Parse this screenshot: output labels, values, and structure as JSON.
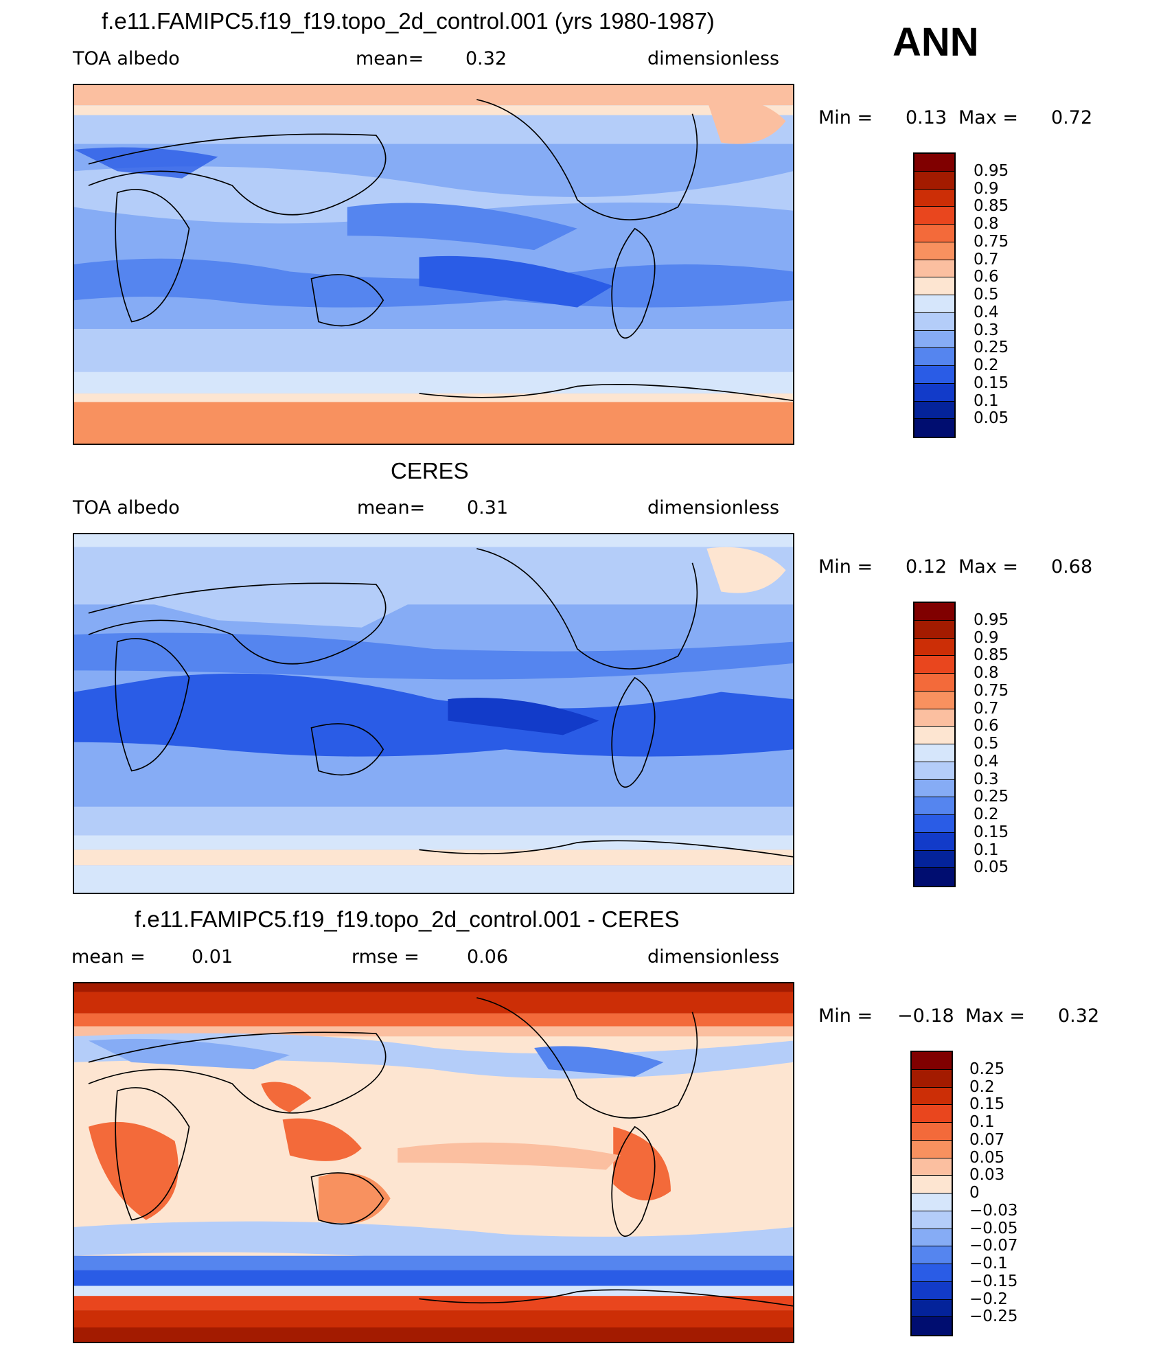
{
  "season": "ANN",
  "panels": [
    {
      "title": "f.e11.FAMIPC5.f19_f19.topo_2d_control.001 (yrs 1980-1987)",
      "left_label": "TOA albedo",
      "center_label": "mean=",
      "center_value": "0.32",
      "right_label": "dimensionless",
      "min_label": "Min =",
      "min_value": "0.13",
      "max_label": "Max =",
      "max_value": "0.72",
      "levels": [
        "0.95",
        "0.9",
        "0.85",
        "0.8",
        "0.75",
        "0.7",
        "0.6",
        "0.5",
        "0.4",
        "0.3",
        "0.25",
        "0.2",
        "0.15",
        "0.1",
        "0.05"
      ]
    },
    {
      "title": "CERES",
      "left_label": "TOA albedo",
      "center_label": "mean=",
      "center_value": "0.31",
      "right_label": "dimensionless",
      "min_label": "Min =",
      "min_value": "0.12",
      "max_label": "Max =",
      "max_value": "0.68",
      "levels": [
        "0.95",
        "0.9",
        "0.85",
        "0.8",
        "0.75",
        "0.7",
        "0.6",
        "0.5",
        "0.4",
        "0.3",
        "0.25",
        "0.2",
        "0.15",
        "0.1",
        "0.05"
      ]
    },
    {
      "title": "f.e11.FAMIPC5.f19_f19.topo_2d_control.001 - CERES",
      "left_label": "mean =",
      "left_value": "0.01",
      "center_label": "rmse =",
      "center_value": "0.06",
      "right_label": "dimensionless",
      "min_label": "Min =",
      "min_value": "−0.18",
      "max_label": "Max =",
      "max_value": "0.32",
      "levels": [
        "0.25",
        "0.2",
        "0.15",
        "0.1",
        "0.07",
        "0.05",
        "0.03",
        "0",
        "−0.03",
        "−0.05",
        "−0.07",
        "−0.1",
        "−0.15",
        "−0.2",
        "−0.25"
      ]
    }
  ],
  "colors": {
    "colorbar": [
      "#800000",
      "#a31b00",
      "#cc2e06",
      "#e9461e",
      "#f36a3a",
      "#f8915f",
      "#fbbfa0",
      "#fde5d1",
      "#d6e6fb",
      "#b4cdf9",
      "#86acf5",
      "#5585ef",
      "#2a5ce6",
      "#123bc9",
      "#04239a",
      "#000d70"
    ]
  },
  "chart_data": [
    {
      "type": "heatmap",
      "title": "f.e11.FAMIPC5.f19_f19.topo_2d_control.001 (yrs 1980-1987)",
      "variable": "TOA albedo",
      "units": "dimensionless",
      "mean": 0.32,
      "min": 0.13,
      "max": 0.72,
      "contour_levels": [
        0.05,
        0.1,
        0.15,
        0.2,
        0.25,
        0.3,
        0.4,
        0.5,
        0.6,
        0.7,
        0.75,
        0.8,
        0.85,
        0.9,
        0.95
      ],
      "xlim": [
        0,
        360
      ],
      "ylim": [
        -90,
        90
      ],
      "zonal_mean_profile": [
        {
          "lat": 80,
          "value": 0.65
        },
        {
          "lat": 60,
          "value": 0.45
        },
        {
          "lat": 40,
          "value": 0.33
        },
        {
          "lat": 20,
          "value": 0.22
        },
        {
          "lat": 0,
          "value": 0.26
        },
        {
          "lat": -20,
          "value": 0.2
        },
        {
          "lat": -40,
          "value": 0.32
        },
        {
          "lat": -60,
          "value": 0.45
        },
        {
          "lat": -80,
          "value": 0.7
        }
      ]
    },
    {
      "type": "heatmap",
      "title": "CERES",
      "variable": "TOA albedo",
      "units": "dimensionless",
      "mean": 0.31,
      "min": 0.12,
      "max": 0.68,
      "contour_levels": [
        0.05,
        0.1,
        0.15,
        0.2,
        0.25,
        0.3,
        0.4,
        0.5,
        0.6,
        0.7,
        0.75,
        0.8,
        0.85,
        0.9,
        0.95
      ],
      "xlim": [
        0,
        360
      ],
      "ylim": [
        -90,
        90
      ],
      "zonal_mean_profile": [
        {
          "lat": 80,
          "value": 0.45
        },
        {
          "lat": 60,
          "value": 0.4
        },
        {
          "lat": 40,
          "value": 0.32
        },
        {
          "lat": 20,
          "value": 0.22
        },
        {
          "lat": 0,
          "value": 0.22
        },
        {
          "lat": -20,
          "value": 0.2
        },
        {
          "lat": -40,
          "value": 0.3
        },
        {
          "lat": -60,
          "value": 0.5
        },
        {
          "lat": -80,
          "value": 0.45
        }
      ]
    },
    {
      "type": "heatmap",
      "title": "f.e11.FAMIPC5.f19_f19.topo_2d_control.001 - CERES",
      "units": "dimensionless",
      "mean": 0.01,
      "rmse": 0.06,
      "min": -0.18,
      "max": 0.32,
      "contour_levels": [
        -0.25,
        -0.2,
        -0.15,
        -0.1,
        -0.07,
        -0.05,
        -0.03,
        0,
        0.03,
        0.05,
        0.07,
        0.1,
        0.15,
        0.2,
        0.25
      ],
      "xlim": [
        0,
        360
      ],
      "ylim": [
        -90,
        90
      ],
      "zonal_mean_profile": [
        {
          "lat": 85,
          "value": 0.2
        },
        {
          "lat": 60,
          "value": -0.04
        },
        {
          "lat": 40,
          "value": 0.0
        },
        {
          "lat": 15,
          "value": 0.03
        },
        {
          "lat": 0,
          "value": 0.05
        },
        {
          "lat": -20,
          "value": 0.02
        },
        {
          "lat": -45,
          "value": -0.04
        },
        {
          "lat": -60,
          "value": -0.12
        },
        {
          "lat": -80,
          "value": 0.22
        }
      ]
    }
  ]
}
